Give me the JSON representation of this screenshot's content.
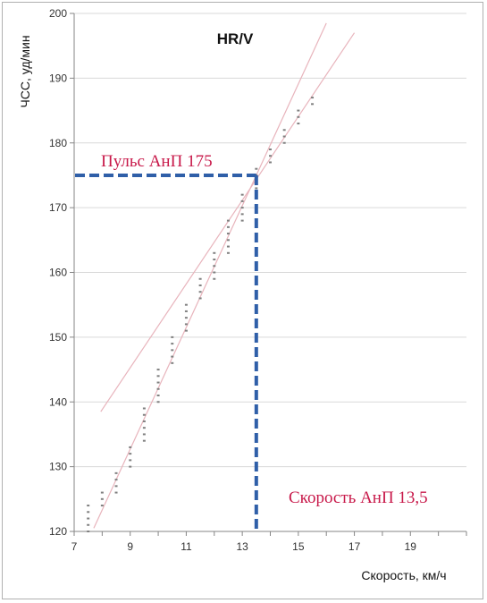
{
  "chart_data": {
    "type": "scatter",
    "title": "HR/V",
    "xlabel": "Скорость, км/ч",
    "ylabel": "ЧСС, уд/мин",
    "xlim": [
      7,
      21
    ],
    "ylim": [
      120,
      200
    ],
    "x_ticks": [
      "7",
      "9",
      "11",
      "13",
      "15",
      "17",
      "19"
    ],
    "y_ticks": [
      "120",
      "130",
      "140",
      "150",
      "160",
      "170",
      "180",
      "190",
      "200"
    ],
    "grid": "horizontal",
    "series": [
      {
        "color": "#808080",
        "points": [
          [
            7.5,
            120
          ],
          [
            7.5,
            121
          ],
          [
            7.5,
            122
          ],
          [
            7.5,
            123
          ],
          [
            7.5,
            124
          ],
          [
            8.0,
            124
          ],
          [
            8.0,
            125
          ],
          [
            8.0,
            126
          ],
          [
            8.5,
            126
          ],
          [
            8.5,
            127
          ],
          [
            8.5,
            128
          ],
          [
            8.5,
            129
          ],
          [
            9.0,
            130
          ],
          [
            9.0,
            131
          ],
          [
            9.0,
            132
          ],
          [
            9.0,
            133
          ],
          [
            9.5,
            134
          ],
          [
            9.5,
            135
          ],
          [
            9.5,
            136
          ],
          [
            9.5,
            137
          ],
          [
            9.5,
            138
          ],
          [
            9.5,
            139
          ],
          [
            10.0,
            140
          ],
          [
            10.0,
            141
          ],
          [
            10.0,
            142
          ],
          [
            10.0,
            143
          ],
          [
            10.0,
            144
          ],
          [
            10.0,
            145
          ],
          [
            10.5,
            146
          ],
          [
            10.5,
            147
          ],
          [
            10.5,
            148
          ],
          [
            10.5,
            149
          ],
          [
            10.5,
            150
          ],
          [
            11.0,
            151
          ],
          [
            11.0,
            152
          ],
          [
            11.0,
            153
          ],
          [
            11.0,
            154
          ],
          [
            11.0,
            155
          ],
          [
            11.5,
            156
          ],
          [
            11.5,
            157
          ],
          [
            11.5,
            158
          ],
          [
            11.5,
            159
          ],
          [
            12.0,
            159
          ],
          [
            12.0,
            160
          ],
          [
            12.0,
            161
          ],
          [
            12.0,
            162
          ],
          [
            12.0,
            163
          ],
          [
            12.5,
            163
          ],
          [
            12.5,
            164
          ],
          [
            12.5,
            165
          ],
          [
            12.5,
            166
          ],
          [
            12.5,
            167
          ],
          [
            12.5,
            168
          ],
          [
            13.0,
            168
          ],
          [
            13.0,
            169
          ],
          [
            13.0,
            170
          ],
          [
            13.0,
            171
          ],
          [
            13.0,
            172
          ],
          [
            13.5,
            173
          ],
          [
            13.5,
            174
          ],
          [
            13.5,
            175
          ],
          [
            13.5,
            176
          ],
          [
            14.0,
            177
          ],
          [
            14.0,
            178
          ],
          [
            14.0,
            179
          ],
          [
            14.5,
            180
          ],
          [
            14.5,
            181
          ],
          [
            14.5,
            182
          ],
          [
            15.0,
            183
          ],
          [
            15.0,
            184
          ],
          [
            15.0,
            185
          ],
          [
            15.5,
            186
          ],
          [
            15.5,
            187
          ]
        ]
      }
    ],
    "trendlines": [
      {
        "color": "#e8b4bc",
        "points": [
          [
            7.7,
            120.5
          ],
          [
            16.0,
            198.5
          ]
        ]
      },
      {
        "color": "#e8b4bc",
        "points": [
          [
            7.95,
            138.5
          ],
          [
            17.0,
            197.0
          ]
        ]
      }
    ],
    "threshold_lines": {
      "color": "#2f5fa8",
      "point": [
        13.5,
        175
      ],
      "style": "dashed"
    },
    "annotations": [
      {
        "text": "Пульс АнП 175",
        "color": "#c8194a"
      },
      {
        "text": "Скорость АнП 13,5",
        "color": "#c8194a"
      }
    ]
  }
}
